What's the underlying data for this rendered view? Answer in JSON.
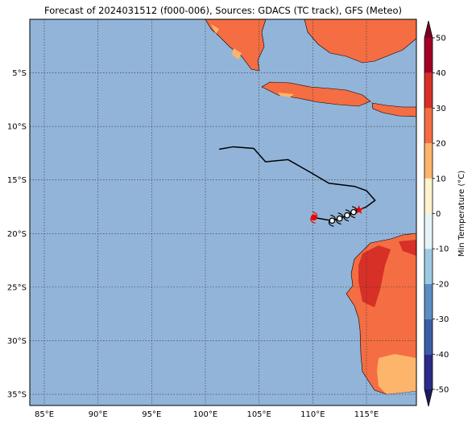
{
  "title": "Forecast of 2024031512 (f000-006), Sources: GDACS (TC track), GFS (Meteo)",
  "map": {
    "xlim": [
      83.65,
      119.65
    ],
    "ylim": [
      -36.05,
      0
    ],
    "ocean_color": "#92b4d9",
    "grid": true,
    "xticks": [
      {
        "value": 85,
        "label": "85°E"
      },
      {
        "value": 90,
        "label": "90°E"
      },
      {
        "value": 95,
        "label": "95°E"
      },
      {
        "value": 100,
        "label": "100°E"
      },
      {
        "value": 105,
        "label": "105°E"
      },
      {
        "value": 110,
        "label": "110°E"
      },
      {
        "value": 115,
        "label": "115°E"
      }
    ],
    "yticks": [
      {
        "value": -5,
        "label": "5°S"
      },
      {
        "value": -10,
        "label": "10°S"
      },
      {
        "value": -15,
        "label": "15°S"
      },
      {
        "value": -20,
        "label": "20°S"
      },
      {
        "value": -25,
        "label": "25°S"
      },
      {
        "value": -30,
        "label": "30°S"
      },
      {
        "value": -35,
        "label": "35°S"
      }
    ]
  },
  "track": {
    "lon": [
      101.28,
      102.6,
      104.5,
      105.6,
      107.7,
      109.8,
      111.5,
      113.9,
      115.0,
      115.8,
      115.0,
      114.3
    ],
    "lat": [
      -12.13,
      -11.9,
      -12.05,
      -13.3,
      -13.1,
      -14.3,
      -15.3,
      -15.6,
      -16.0,
      -16.9,
      -17.5,
      -17.8
    ]
  },
  "forecast": {
    "lon": [
      114.3,
      113.8,
      113.2,
      112.5,
      111.8,
      110.1
    ],
    "lat": [
      -17.8,
      -18.0,
      -18.3,
      -18.6,
      -18.8,
      -18.5
    ]
  },
  "colorbar": {
    "label": "Min Temperature (°C)",
    "lim": [
      -50,
      50
    ],
    "ticks": [
      -50,
      -40,
      -30,
      -20,
      -10,
      0,
      10,
      20,
      30,
      40,
      50
    ],
    "colors": [
      "#2b2b8a",
      "#3b5ea6",
      "#5b8fc4",
      "#9dcae3",
      "#e6f4f8",
      "#fff3cc",
      "#fdb56b",
      "#f46d43",
      "#d73027",
      "#a50026"
    ],
    "under": "#1c1c5e",
    "over": "#7a0020"
  }
}
